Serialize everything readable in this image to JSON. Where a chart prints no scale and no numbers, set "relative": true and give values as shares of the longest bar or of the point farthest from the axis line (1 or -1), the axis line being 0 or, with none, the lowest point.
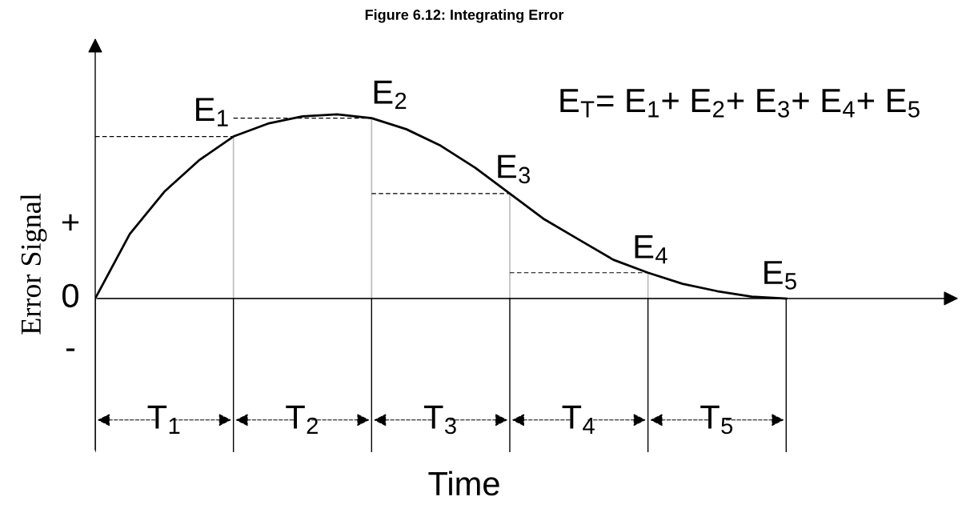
{
  "chart_data": {
    "type": "line",
    "title": "Figure 6.12: Integrating Error",
    "ylabel": "Error Signal",
    "relative": true,
    "categories": [
      null,
      null,
      null,
      null,
      null,
      null,
      null,
      null,
      null,
      null,
      null,
      null,
      null,
      null,
      null,
      null,
      null,
      null,
      null,
      null,
      null
    ],
    "series": [
      {
        "color": "#000000",
        "values": [
          0,
          0.35,
          0.58,
          0.75,
          0.88,
          0.95,
          0.99,
          1.0,
          0.98,
          0.92,
          0.83,
          0.71,
          0.57,
          0.43,
          0.32,
          0.21,
          0.14,
          0.08,
          0.04,
          0.01,
          0
        ]
      }
    ],
    "annotations": [
      "E$_{1}$",
      "E$_{2}$",
      "E$_{3}$",
      "E$_{4}$",
      "E$_{5}$",
      "E$_{T}$= E$_{1}$+ E$_{2}$+ E$_{3}$+ E$_{4}$+ E$_{5}$",
      "T$_{1}$",
      "T$_{2}$",
      "T$_{3}$",
      "T$_{4}$",
      "T$_{5}$",
      "+",
      "0",
      "-",
      "Time"
    ],
    "marker": "none",
    "line_style": "solid",
    "legend": false
  }
}
